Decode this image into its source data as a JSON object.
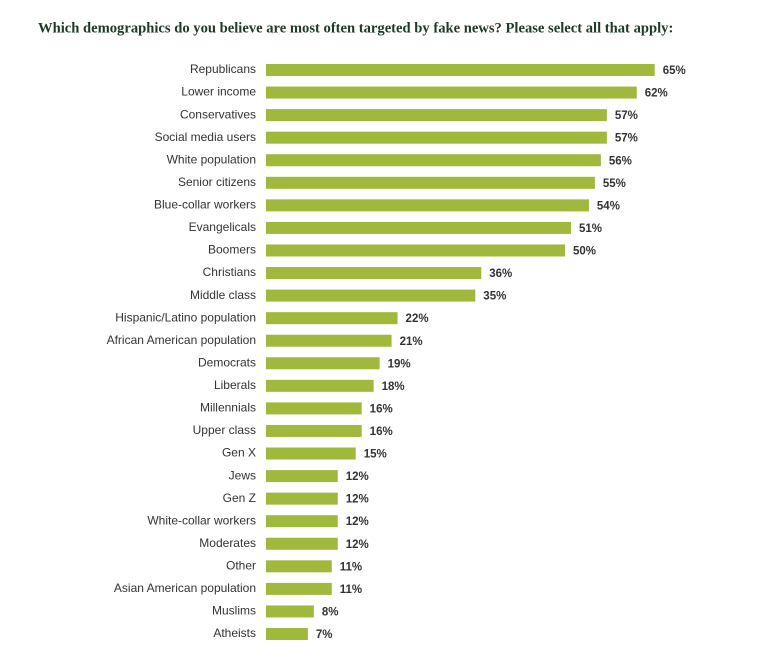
{
  "chart_data": {
    "type": "bar",
    "orientation": "horizontal",
    "title": "Which demographics do you believe are most often targeted by fake news? Please select all that apply:",
    "categories": [
      "Republicans",
      "Lower income",
      "Conservatives",
      "Social media users",
      "White population",
      "Senior citizens",
      "Blue-collar workers",
      "Evangelicals",
      "Boomers",
      "Christians",
      "Middle class",
      "Hispanic/Latino population",
      "African American population",
      "Democrats",
      "Liberals",
      "Millennials",
      "Upper class",
      "Gen X",
      "Jews",
      "Gen Z",
      "White-collar workers",
      "Moderates",
      "Other",
      "Asian American population",
      "Muslims",
      "Atheists"
    ],
    "values": [
      65,
      62,
      57,
      57,
      56,
      55,
      54,
      51,
      50,
      36,
      35,
      22,
      21,
      19,
      18,
      16,
      16,
      15,
      12,
      12,
      12,
      12,
      11,
      11,
      8,
      7
    ],
    "value_labels": [
      "65%",
      "62%",
      "57%",
      "57%",
      "56%",
      "55%",
      "54%",
      "51%",
      "50%",
      "36%",
      "35%",
      "22%",
      "21%",
      "19%",
      "18%",
      "16%",
      "16%",
      "15%",
      "12%",
      "12%",
      "12%",
      "12%",
      "11%",
      "11%",
      "8%",
      "7%"
    ],
    "color": "#a0b83c"
  }
}
